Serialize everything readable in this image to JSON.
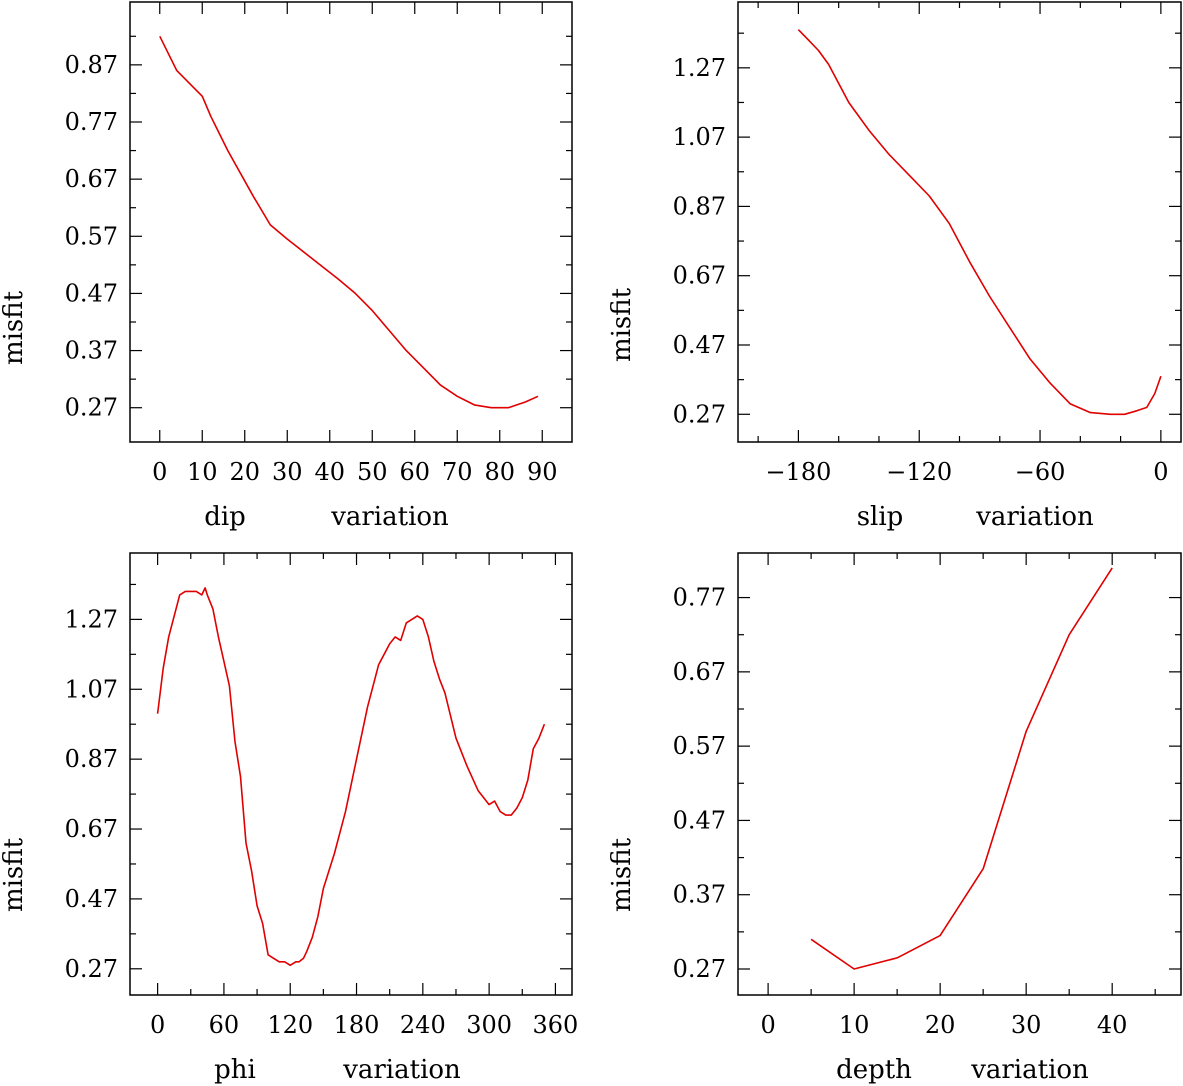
{
  "chart_data": [
    {
      "type": "line",
      "id": "dip",
      "xlabel": "dip",
      "xlabel2": "variation",
      "ylabel": "misfit",
      "xlim": [
        -7,
        97
      ],
      "ylim": [
        0.21,
        0.98
      ],
      "xticks": [
        0,
        10,
        20,
        30,
        40,
        50,
        60,
        70,
        80,
        90
      ],
      "xtick_labels": [
        "0",
        "10",
        "20",
        "30",
        "40",
        "50",
        "60",
        "70",
        "80",
        "90"
      ],
      "xminor": [],
      "yticks": [
        0.27,
        0.37,
        0.47,
        0.57,
        0.67,
        0.77,
        0.87
      ],
      "ytick_labels": [
        "0.27",
        "0.37",
        "0.47",
        "0.57",
        "0.67",
        "0.77",
        "0.87"
      ],
      "yminor": [
        0.32,
        0.42,
        0.52,
        0.62,
        0.72,
        0.82,
        0.92
      ],
      "x": [
        0,
        4,
        10,
        12,
        16,
        22,
        26,
        30,
        36,
        42,
        46,
        50,
        54,
        58,
        62,
        66,
        70,
        74,
        78,
        82,
        86,
        89
      ],
      "y": [
        0.92,
        0.86,
        0.815,
        0.78,
        0.72,
        0.64,
        0.59,
        0.565,
        0.53,
        0.495,
        0.47,
        0.44,
        0.405,
        0.37,
        0.34,
        0.31,
        0.29,
        0.275,
        0.27,
        0.27,
        0.28,
        0.29
      ]
    },
    {
      "type": "line",
      "id": "slip",
      "xlabel": "slip",
      "xlabel2": "variation",
      "ylabel": "misfit",
      "xlim": [
        -210,
        10
      ],
      "ylim": [
        0.19,
        1.46
      ],
      "xticks": [
        -180,
        -120,
        -60,
        0
      ],
      "xtick_labels": [
        "−180",
        "−120",
        "−60",
        "0"
      ],
      "xminor": [
        -200,
        -160,
        -140,
        -100,
        -80,
        -40,
        -20
      ],
      "yticks": [
        0.27,
        0.47,
        0.67,
        0.87,
        1.07,
        1.27
      ],
      "ytick_labels": [
        "0.27",
        "0.47",
        "0.67",
        "0.87",
        "1.07",
        "1.27"
      ],
      "yminor": [
        0.37,
        0.57,
        0.77,
        0.97,
        1.17,
        1.37
      ],
      "x": [
        -180,
        -175,
        -170,
        -165,
        -155,
        -145,
        -135,
        -125,
        -115,
        -105,
        -95,
        -85,
        -75,
        -65,
        -55,
        -45,
        -35,
        -25,
        -18,
        -12,
        -7,
        -3,
        0
      ],
      "y": [
        1.38,
        1.35,
        1.32,
        1.28,
        1.17,
        1.09,
        1.02,
        0.96,
        0.9,
        0.82,
        0.71,
        0.61,
        0.52,
        0.43,
        0.36,
        0.3,
        0.275,
        0.27,
        0.27,
        0.28,
        0.29,
        0.33,
        0.38
      ]
    },
    {
      "type": "line",
      "id": "phi",
      "xlabel": "phi",
      "xlabel2": "variation",
      "ylabel": "misfit",
      "xlim": [
        -25,
        375
      ],
      "ylim": [
        0.195,
        1.46
      ],
      "xticks": [
        0,
        60,
        120,
        180,
        240,
        300,
        360
      ],
      "xtick_labels": [
        "0",
        "60",
        "120",
        "180",
        "240",
        "300",
        "360"
      ],
      "xminor": [
        30,
        90,
        150,
        210,
        270,
        330
      ],
      "yticks": [
        0.27,
        0.47,
        0.67,
        0.87,
        1.07,
        1.27
      ],
      "ytick_labels": [
        "0.27",
        "0.47",
        "0.67",
        "0.87",
        "1.07",
        "1.27"
      ],
      "yminor": [
        0.37,
        0.57,
        0.77,
        0.97,
        1.17,
        1.37
      ],
      "x": [
        0,
        5,
        10,
        15,
        20,
        25,
        30,
        35,
        40,
        43,
        45,
        50,
        55,
        60,
        65,
        70,
        75,
        80,
        85,
        90,
        95,
        100,
        105,
        110,
        115,
        120,
        125,
        128,
        132,
        135,
        140,
        145,
        150,
        160,
        170,
        180,
        190,
        200,
        210,
        215,
        220,
        225,
        230,
        235,
        240,
        245,
        250,
        255,
        260,
        270,
        280,
        290,
        300,
        305,
        310,
        315,
        320,
        325,
        330,
        335,
        340,
        345,
        350
      ],
      "y": [
        1.0,
        1.13,
        1.22,
        1.28,
        1.34,
        1.35,
        1.35,
        1.35,
        1.34,
        1.36,
        1.34,
        1.3,
        1.22,
        1.15,
        1.08,
        0.92,
        0.82,
        0.63,
        0.55,
        0.45,
        0.4,
        0.31,
        0.3,
        0.29,
        0.29,
        0.28,
        0.29,
        0.29,
        0.3,
        0.32,
        0.36,
        0.42,
        0.5,
        0.6,
        0.72,
        0.87,
        1.02,
        1.14,
        1.2,
        1.22,
        1.21,
        1.26,
        1.27,
        1.28,
        1.27,
        1.22,
        1.15,
        1.1,
        1.06,
        0.93,
        0.85,
        0.78,
        0.74,
        0.75,
        0.72,
        0.71,
        0.71,
        0.73,
        0.76,
        0.81,
        0.9,
        0.93,
        0.97
      ]
    },
    {
      "type": "line",
      "id": "depth",
      "xlabel": "depth",
      "xlabel2": "variation",
      "ylabel": "misfit",
      "xlim": [
        -3.5,
        48
      ],
      "ylim": [
        0.235,
        0.83
      ],
      "xticks": [
        0,
        10,
        20,
        30,
        40
      ],
      "xtick_labels": [
        "0",
        "10",
        "20",
        "30",
        "40"
      ],
      "xminor": [
        5,
        15,
        25,
        35,
        45
      ],
      "yticks": [
        0.27,
        0.37,
        0.47,
        0.57,
        0.67,
        0.77
      ],
      "ytick_labels": [
        "0.27",
        "0.37",
        "0.47",
        "0.57",
        "0.67",
        "0.77"
      ],
      "yminor": [
        0.32,
        0.42,
        0.52,
        0.62,
        0.72
      ],
      "x": [
        5,
        10,
        15,
        20,
        25,
        30,
        35,
        40
      ],
      "y": [
        0.31,
        0.27,
        0.285,
        0.315,
        0.405,
        0.59,
        0.72,
        0.81
      ]
    }
  ]
}
